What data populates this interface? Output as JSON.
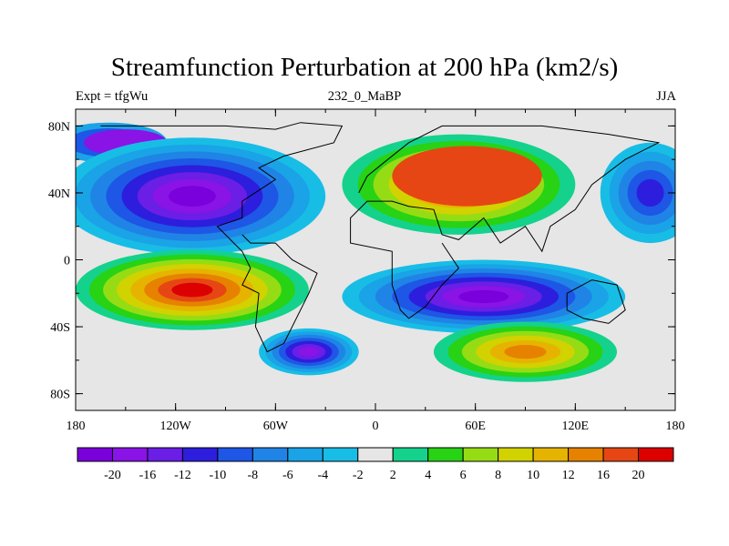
{
  "title": "Streamfunction Perturbation at 200 hPa (km2/s)",
  "left_label": "Expt = tfgWu",
  "center_label": "232_0_MaBP",
  "right_label": "JJA",
  "lat_ticks": [
    "80N",
    "40N",
    "0",
    "40S",
    "80S"
  ],
  "lon_ticks": [
    "180",
    "120W",
    "60W",
    "0",
    "60E",
    "120E",
    "180"
  ],
  "colorbar": {
    "labels": [
      "-20",
      "-16",
      "-12",
      "-10",
      "-8",
      "-6",
      "-4",
      "-2",
      "2",
      "4",
      "6",
      "8",
      "10",
      "12",
      "16",
      "20"
    ],
    "colors": [
      "#7a00dc",
      "#8a13e6",
      "#6a1ee6",
      "#2c1edc",
      "#1e56e6",
      "#1f84e6",
      "#1aa3e6",
      "#18bde6",
      "#e6e6e6",
      "#14d28c",
      "#28d214",
      "#96dc14",
      "#d2d200",
      "#e6b400",
      "#e68200",
      "#e64614",
      "#dc0000"
    ]
  },
  "map": {
    "xlim": [
      -180,
      180
    ],
    "ylim": [
      -90,
      90
    ],
    "fields": [
      {
        "label": "NE Pacific low",
        "cx": -160,
        "cy": 70,
        "rx": 35,
        "ry": 12,
        "levels": [
          -4,
          -8,
          -12
        ]
      },
      {
        "label": "NE Pacific high",
        "cx": -150,
        "cy": 70,
        "rx": 25,
        "ry": 8,
        "levels": [
          -16
        ]
      },
      {
        "label": "N America low",
        "cx": -110,
        "cy": 38,
        "rx": 80,
        "ry": 35,
        "levels": [
          -2,
          -4,
          -6,
          -8,
          -10,
          -12,
          -16,
          -20
        ]
      },
      {
        "label": "Eurasia high",
        "cx": 50,
        "cy": 45,
        "rx": 70,
        "ry": 30,
        "levels": [
          2,
          4,
          6,
          8,
          10,
          12,
          16
        ]
      },
      {
        "label": "Asia high core",
        "cx": 55,
        "cy": 50,
        "rx": 45,
        "ry": 18,
        "levels": [
          16
        ]
      },
      {
        "label": "Eastern Pacific low",
        "cx": 165,
        "cy": 40,
        "rx": 30,
        "ry": 30,
        "levels": [
          -2,
          -4,
          -6,
          -8,
          -10
        ]
      },
      {
        "label": "S Pacific high",
        "cx": -110,
        "cy": -18,
        "rx": 70,
        "ry": 24,
        "levels": [
          2,
          4,
          6,
          8,
          10,
          12,
          16,
          20
        ]
      },
      {
        "label": "S Indian low",
        "cx": 65,
        "cy": -22,
        "rx": 85,
        "ry": 22,
        "levels": [
          -2,
          -4,
          -6,
          -8,
          -10,
          -12,
          -16,
          -20
        ]
      },
      {
        "label": "S Atlantic low",
        "cx": -40,
        "cy": -55,
        "rx": 30,
        "ry": 14,
        "levels": [
          -2,
          -4,
          -6,
          -8,
          -10,
          -12,
          -16
        ]
      },
      {
        "label": "S high",
        "cx": 90,
        "cy": -55,
        "rx": 55,
        "ry": 18,
        "levels": [
          2,
          4,
          6,
          8,
          10,
          12
        ]
      }
    ],
    "coastline": [
      [
        -165,
        80
      ],
      [
        -90,
        80
      ],
      [
        -60,
        78
      ],
      [
        -45,
        82
      ],
      [
        -20,
        80
      ],
      [
        -25,
        70
      ],
      [
        -55,
        62
      ],
      [
        -70,
        55
      ],
      [
        -60,
        48
      ],
      [
        -80,
        35
      ],
      [
        -80,
        25
      ],
      [
        -95,
        20
      ],
      [
        -85,
        10
      ],
      [
        -80,
        5
      ],
      [
        -75,
        -5
      ],
      [
        -80,
        -15
      ],
      [
        -70,
        -20
      ],
      [
        -72,
        -40
      ],
      [
        -65,
        -55
      ],
      [
        -55,
        -50
      ],
      [
        -40,
        -20
      ],
      [
        -35,
        -8
      ],
      [
        -50,
        0
      ],
      [
        -60,
        10
      ],
      [
        -75,
        10
      ],
      [
        -80,
        15
      ]
    ],
    "coastline2": [
      [
        -10,
        40
      ],
      [
        -5,
        50
      ],
      [
        5,
        58
      ],
      [
        20,
        70
      ],
      [
        40,
        80
      ],
      [
        100,
        80
      ],
      [
        140,
        75
      ],
      [
        170,
        70
      ],
      [
        150,
        60
      ],
      [
        130,
        45
      ],
      [
        120,
        30
      ],
      [
        105,
        20
      ],
      [
        100,
        5
      ],
      [
        90,
        20
      ],
      [
        75,
        10
      ],
      [
        65,
        25
      ],
      [
        50,
        12
      ],
      [
        40,
        15
      ],
      [
        35,
        30
      ],
      [
        20,
        32
      ],
      [
        10,
        35
      ],
      [
        -5,
        35
      ],
      [
        -15,
        25
      ],
      [
        -15,
        10
      ],
      [
        10,
        5
      ],
      [
        10,
        -15
      ],
      [
        15,
        -30
      ],
      [
        20,
        -35
      ],
      [
        30,
        -28
      ],
      [
        40,
        -15
      ],
      [
        50,
        -5
      ],
      [
        40,
        10
      ]
    ],
    "coastline3": [
      [
        115,
        -20
      ],
      [
        130,
        -12
      ],
      [
        145,
        -15
      ],
      [
        150,
        -30
      ],
      [
        140,
        -38
      ],
      [
        125,
        -35
      ],
      [
        115,
        -30
      ],
      [
        115,
        -20
      ]
    ]
  }
}
